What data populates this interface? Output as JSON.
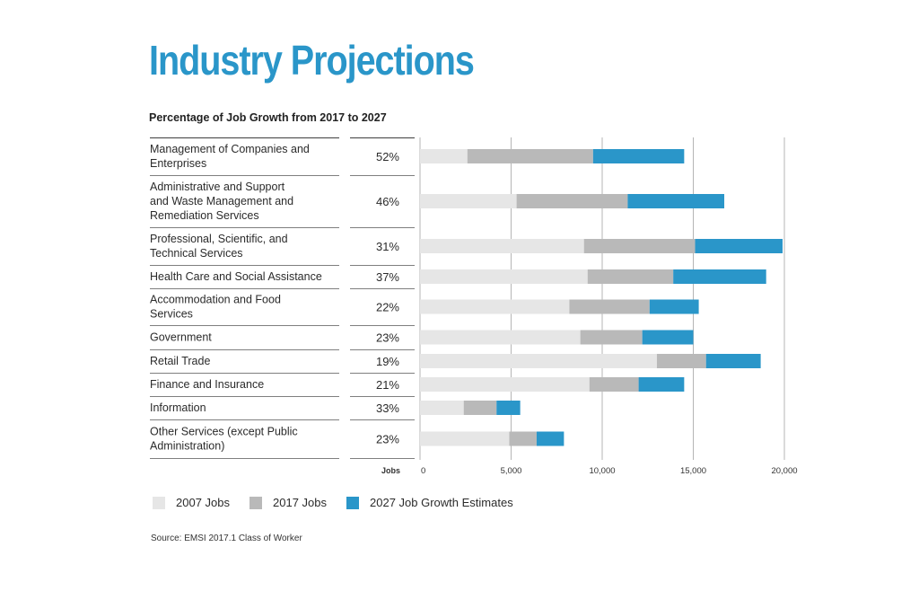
{
  "title": "Industry Projections",
  "subtitle": "Percentage of Job Growth from 2017 to 2027",
  "source": "Source: EMSI 2017.1 Class of Worker",
  "colors": {
    "title": "#2a96c9",
    "jobs2007": "#e6e6e6",
    "jobs2017": "#b9b9b9",
    "jobs2027": "#2a96c9",
    "gridline": "#b5b5b5",
    "rule": "#555555"
  },
  "legend": [
    {
      "label": "2007 Jobs",
      "color_key": "jobs2007"
    },
    {
      "label": "2017 Jobs",
      "color_key": "jobs2017"
    },
    {
      "label": "2027 Job Growth Estimates",
      "color_key": "jobs2027"
    }
  ],
  "chart_data": {
    "type": "bar",
    "orientation": "horizontal",
    "stacked": true,
    "title": "Industry Projections",
    "subtitle": "Percentage of Job Growth from 2017 to 2027",
    "xlabel": "Jobs",
    "xlim": [
      0,
      20000
    ],
    "xticks": [
      0,
      5000,
      10000,
      15000,
      20000
    ],
    "xtick_labels": [
      "0",
      "5,000",
      "10,000",
      "15,000",
      "20,000"
    ],
    "grid": true,
    "legend_position": "bottom-left",
    "categories": [
      {
        "lines": [
          "Management of Companies and",
          "Enterprises"
        ],
        "growth_pct": "52%"
      },
      {
        "lines": [
          "Administrative and Support",
          "and Waste Management and",
          "Remediation Services"
        ],
        "growth_pct": "46%"
      },
      {
        "lines": [
          "Professional, Scientific, and",
          "Technical Services"
        ],
        "growth_pct": "31%"
      },
      {
        "lines": [
          "Health Care and Social Assistance"
        ],
        "growth_pct": "37%"
      },
      {
        "lines": [
          "Accommodation and Food",
          "Services"
        ],
        "growth_pct": "22%"
      },
      {
        "lines": [
          "Government"
        ],
        "growth_pct": "23%"
      },
      {
        "lines": [
          "Retail Trade"
        ],
        "growth_pct": "19%"
      },
      {
        "lines": [
          "Finance and Insurance"
        ],
        "growth_pct": "21%"
      },
      {
        "lines": [
          "Information"
        ],
        "growth_pct": "33%"
      },
      {
        "lines": [
          "Other Services (except Public",
          "Administration)"
        ],
        "growth_pct": "23%"
      }
    ],
    "series": [
      {
        "name": "2007 Jobs",
        "color_key": "jobs2007",
        "values": [
          2600,
          5300,
          9000,
          9200,
          8200,
          8800,
          13000,
          9300,
          2400,
          4900
        ]
      },
      {
        "name": "2017 Jobs",
        "color_key": "jobs2017",
        "values": [
          6900,
          6100,
          6100,
          4700,
          4400,
          3400,
          2700,
          2700,
          1800,
          1500
        ]
      },
      {
        "name": "2027 Job Growth Estimates",
        "color_key": "jobs2027",
        "values": [
          5000,
          5300,
          4800,
          5100,
          2700,
          2800,
          3000,
          2500,
          1300,
          1500
        ]
      }
    ]
  }
}
